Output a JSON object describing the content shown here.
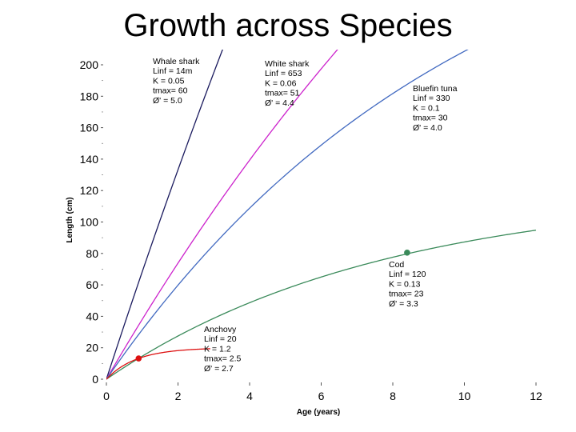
{
  "title": "Growth across Species",
  "chart_data": {
    "type": "line",
    "title": "Growth across Species",
    "xlabel": "Age (years)",
    "ylabel": "Length (cm)",
    "xlim": [
      0,
      12
    ],
    "ylim": [
      0,
      200
    ],
    "xticks": [
      0,
      2,
      4,
      6,
      8,
      10,
      12
    ],
    "yticks": [
      0,
      20,
      40,
      60,
      80,
      100,
      120,
      140,
      160,
      180,
      200
    ],
    "grid": false,
    "series": [
      {
        "name": "Whale shark",
        "color": "#1a1a5e",
        "linf": 1400,
        "k": 0.05,
        "annotation": [
          "Whale shark",
          "Linf = 14m",
          "K     = 0.05",
          "tmax= 60",
          "Ø'    = 5.0"
        ]
      },
      {
        "name": "White shark",
        "color": "#cc22cc",
        "linf": 653,
        "k": 0.06,
        "annotation": [
          "White shark",
          "Linf = 653",
          "K     = 0.06",
          "tmax= 51",
          "Ø'    = 4.4"
        ]
      },
      {
        "name": "Bluefin tuna",
        "color": "#4169c0",
        "linf": 330,
        "k": 0.1,
        "annotation": [
          "Bluefin tuna",
          "Linf = 330",
          "K     = 0.1",
          "tmax= 30",
          "Ø'    = 4.0"
        ]
      },
      {
        "name": "Cod",
        "color": "#3a8a5a",
        "linf": 120,
        "k": 0.13,
        "marker": {
          "x": 8.4,
          "y": 80.5
        },
        "annotation": [
          "Cod",
          "Linf = 120",
          "K     = 0.13",
          "tmax= 23",
          "Ø'    = 3.3"
        ]
      },
      {
        "name": "Anchovy",
        "color": "#dd1111",
        "linf": 20,
        "k": 1.2,
        "marker": {
          "x": 0.9,
          "y": 13.2
        },
        "annotation": [
          "Anchovy",
          "Linf = 20",
          "K     = 1.2",
          "tmax= 2.5",
          "Ø'    = 2.7"
        ]
      }
    ]
  }
}
